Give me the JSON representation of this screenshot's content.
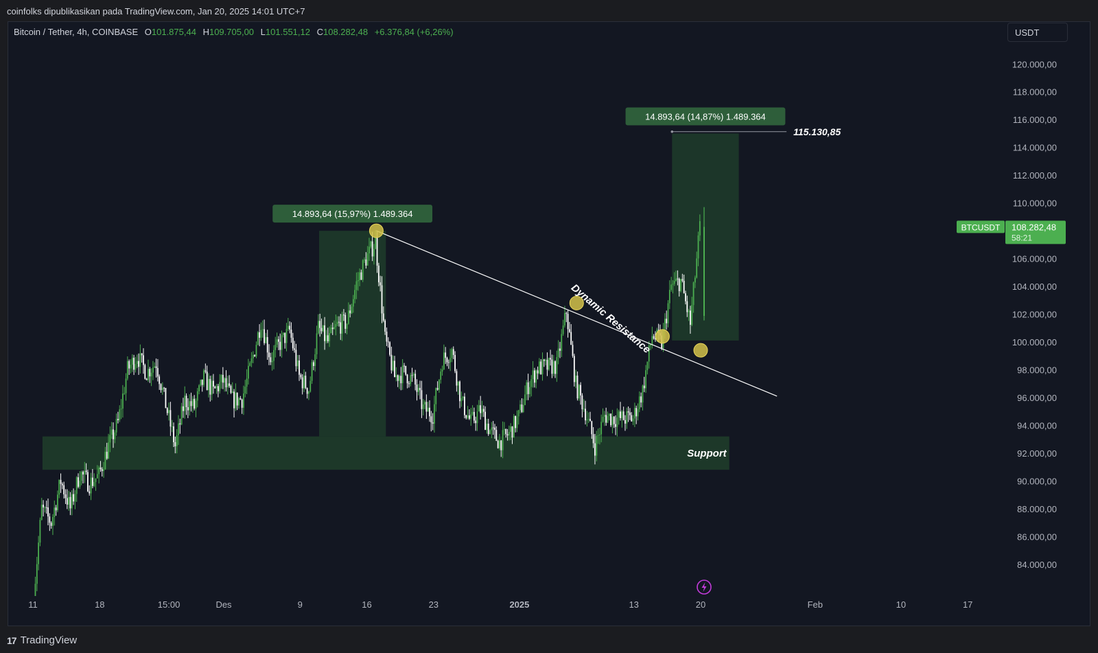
{
  "header": {
    "publisher_line": "coinfolks dipublikasikan pada TradingView.com, Jan 20, 2025 14:01 UTC+7"
  },
  "symbol": {
    "name": "Bitcoin / Tether, 4h, COINBASE",
    "open_label": "O",
    "open": "101.875,44",
    "high_label": "H",
    "high": "109.705,00",
    "low_label": "L",
    "low": "101.551,12",
    "close_label": "C",
    "close": "108.282,48",
    "change": "+6.376,84 (+6,26%)"
  },
  "currency_button": "USDT",
  "footer": {
    "brand": "TradingView",
    "logo": "tradingview-logo-icon"
  },
  "colors": {
    "background": "#131722",
    "up": "#4caf50",
    "down": "#ffffff",
    "zone": "#1e3a2a",
    "marker": "#d4c24a",
    "price_tag": "#4caf50"
  },
  "chart_data": {
    "type": "candlestick",
    "symbol": "BTCUSDT",
    "timeframe": "4h",
    "ylim": [
      82000,
      122000
    ],
    "y_ticks": [
      84000,
      86000,
      88000,
      90000,
      92000,
      94000,
      96000,
      98000,
      100000,
      102000,
      104000,
      106000,
      108000,
      110000,
      112000,
      114000,
      116000,
      118000,
      120000
    ],
    "y_tick_labels": [
      "84.000,00",
      "86.000,00",
      "88.000,00",
      "90.000,00",
      "92.000,00",
      "94.000,00",
      "96.000,00",
      "98.000,00",
      "100.000,00",
      "102.000,00",
      "104.000,00",
      "106.000,00",
      "108.000,00",
      "110.000,00",
      "112.000,00",
      "114.000,00",
      "116.000,00",
      "118.000,00",
      "120.000,00"
    ],
    "x_ticks": [
      {
        "date": "2024-11-11",
        "label": "11",
        "bold": false
      },
      {
        "date": "2024-11-18",
        "label": "18",
        "bold": false
      },
      {
        "date": "2024-11-25T06:00",
        "label": "15:00",
        "bold": false
      },
      {
        "date": "2024-12-01",
        "label": "Des",
        "bold": false
      },
      {
        "date": "2024-12-09",
        "label": "9",
        "bold": false
      },
      {
        "date": "2024-12-16",
        "label": "16",
        "bold": false
      },
      {
        "date": "2024-12-23",
        "label": "23",
        "bold": false
      },
      {
        "date": "2025-01-01",
        "label": "2025",
        "bold": true
      },
      {
        "date": "2025-01-13",
        "label": "13",
        "bold": false
      },
      {
        "date": "2025-01-20",
        "label": "20",
        "bold": false
      },
      {
        "date": "2025-02-01",
        "label": "Feb",
        "bold": false
      },
      {
        "date": "2025-02-10",
        "label": "10",
        "bold": false
      },
      {
        "date": "2025-02-17",
        "label": "17",
        "bold": false
      }
    ],
    "price_path": [
      [
        "2024-11-11",
        80500
      ],
      [
        "2024-11-12",
        88000
      ],
      [
        "2024-11-13",
        87000
      ],
      [
        "2024-11-14",
        90000
      ],
      [
        "2024-11-15",
        88000
      ],
      [
        "2024-11-16",
        90600
      ],
      [
        "2024-11-17",
        89800
      ],
      [
        "2024-11-18",
        90400
      ],
      [
        "2024-11-19",
        92500
      ],
      [
        "2024-11-20",
        94200
      ],
      [
        "2024-11-21",
        98000
      ],
      [
        "2024-11-22",
        99000
      ],
      [
        "2024-11-23",
        97800
      ],
      [
        "2024-11-24",
        98500
      ],
      [
        "2024-11-25",
        95500
      ],
      [
        "2024-11-26",
        92500
      ],
      [
        "2024-11-27",
        95800
      ],
      [
        "2024-11-28",
        95300
      ],
      [
        "2024-11-29",
        97400
      ],
      [
        "2024-11-30",
        96400
      ],
      [
        "2024-12-01",
        97200
      ],
      [
        "2024-12-02",
        95800
      ],
      [
        "2024-12-03",
        95900
      ],
      [
        "2024-12-04",
        98500
      ],
      [
        "2024-12-05",
        101500
      ],
      [
        "2024-12-06",
        98800
      ],
      [
        "2024-12-07",
        99900
      ],
      [
        "2024-12-08",
        100800
      ],
      [
        "2024-12-09",
        97500
      ],
      [
        "2024-12-10",
        96600
      ],
      [
        "2024-12-11",
        101000
      ],
      [
        "2024-12-12",
        100000
      ],
      [
        "2024-12-13",
        101200
      ],
      [
        "2024-12-14",
        101400
      ],
      [
        "2024-12-15",
        104200
      ],
      [
        "2024-12-16",
        106000
      ],
      [
        "2024-12-17",
        107200
      ],
      [
        "2024-12-18",
        100200
      ],
      [
        "2024-12-19",
        97500
      ],
      [
        "2024-12-20",
        97800
      ],
      [
        "2024-12-21",
        97200
      ],
      [
        "2024-12-22",
        95200
      ],
      [
        "2024-12-23",
        94800
      ],
      [
        "2024-12-24",
        98700
      ],
      [
        "2024-12-25",
        99400
      ],
      [
        "2024-12-26",
        95700
      ],
      [
        "2024-12-27",
        94200
      ],
      [
        "2024-12-28",
        95100
      ],
      [
        "2024-12-29",
        93600
      ],
      [
        "2024-12-30",
        92800
      ],
      [
        "2024-12-31",
        93400
      ],
      [
        "2025-01-01",
        94600
      ],
      [
        "2025-01-02",
        96900
      ],
      [
        "2025-01-03",
        98100
      ],
      [
        "2025-01-04",
        98200
      ],
      [
        "2025-01-05",
        98300
      ],
      [
        "2025-01-06",
        102200
      ],
      [
        "2025-01-07",
        96900
      ],
      [
        "2025-01-08",
        95000
      ],
      [
        "2025-01-09",
        92500
      ],
      [
        "2025-01-10",
        94700
      ],
      [
        "2025-01-11",
        94500
      ],
      [
        "2025-01-12",
        94500
      ],
      [
        "2025-01-13",
        94500
      ],
      [
        "2025-01-14",
        96500
      ],
      [
        "2025-01-15",
        100500
      ],
      [
        "2025-01-16",
        99900
      ],
      [
        "2025-01-17",
        104000
      ],
      [
        "2025-01-18",
        104400
      ],
      [
        "2025-01-19",
        101300
      ],
      [
        "2025-01-20",
        108282
      ]
    ],
    "support_zone": {
      "label": "Support",
      "x_start": "2024-11-12",
      "x_end": "2025-01-23",
      "y_low": 90800,
      "y_high": 93200
    },
    "resistance_line": {
      "label": "Dynamic Resistance",
      "start": [
        "2024-12-17",
        108000
      ],
      "end": [
        "2025-01-28",
        96100
      ]
    },
    "measure_boxes": [
      {
        "label": "14.893,64 (15,97%) 1.489.364",
        "x_start": "2024-12-11",
        "x_end": "2024-12-18",
        "y_low": 93200,
        "y_high": 108000
      },
      {
        "label": "14.893,64 (14,87%) 1.489.364",
        "x_start": "2025-01-17",
        "x_end": "2025-01-24",
        "y_low": 100100,
        "y_high": 115000
      }
    ],
    "target": {
      "value": 115130.85,
      "label": "115.130,85",
      "x_start": "2025-01-17",
      "x_end": "2025-01-29"
    },
    "touch_points": [
      {
        "date": "2024-12-17",
        "price": 108000
      },
      {
        "date": "2025-01-07",
        "price": 102800
      },
      {
        "date": "2025-01-16",
        "price": 100400
      },
      {
        "date": "2025-01-20",
        "price": 99400
      }
    ],
    "last_price": {
      "symbol": "BTCUSDT",
      "value": 108282.48,
      "label": "108.282,48",
      "countdown": "58:21"
    },
    "event_icon": {
      "name": "lightning-icon",
      "date": "2025-01-20"
    }
  }
}
